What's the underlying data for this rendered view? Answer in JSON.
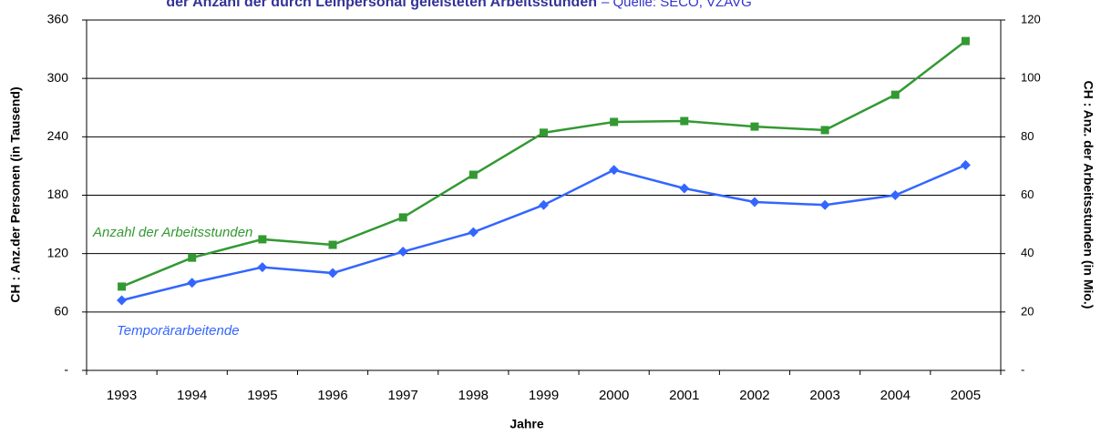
{
  "chart_data": {
    "type": "line",
    "title": "der Anzahl der durch Leihpersonal geleisteten Arbeitsstunden",
    "source": "– Quelle: SECO, VZAVG",
    "xlabel": "Jahre",
    "ylabel": "CH : Anz.der Personen (in Tausend)",
    "y2label": "CH : Anz. der Arbeitsstunden (in Mio.)",
    "categories": [
      "1993",
      "1994",
      "1995",
      "1996",
      "1997",
      "1998",
      "1999",
      "2000",
      "2001",
      "2002",
      "2003",
      "2004",
      "2005"
    ],
    "series": [
      {
        "name": "Temporärarbeitende",
        "color": "#3366ff",
        "marker": "diamond",
        "values": [
          72,
          90,
          106,
          100,
          122,
          142,
          170,
          206,
          187,
          173,
          170,
          180,
          211
        ]
      },
      {
        "name": "Anzahl der Arbeitsstunden",
        "color": "#339933",
        "marker": "square",
        "axis": "y2",
        "values": [
          28.7,
          38.6,
          44.9,
          43.0,
          52.4,
          67.0,
          81.4,
          85.1,
          85.4,
          83.5,
          82.3,
          94.4,
          112.8
        ]
      }
    ],
    "ylim": [
      0,
      360
    ],
    "yticks": [
      {
        "value": 0,
        "label": "-"
      },
      60,
      120,
      180,
      240,
      300,
      360
    ],
    "y2lim": [
      0,
      120
    ],
    "y2ticks": [
      {
        "value": 0,
        "label": "-"
      },
      20,
      40,
      60,
      80,
      100,
      120
    ],
    "grid": true
  }
}
